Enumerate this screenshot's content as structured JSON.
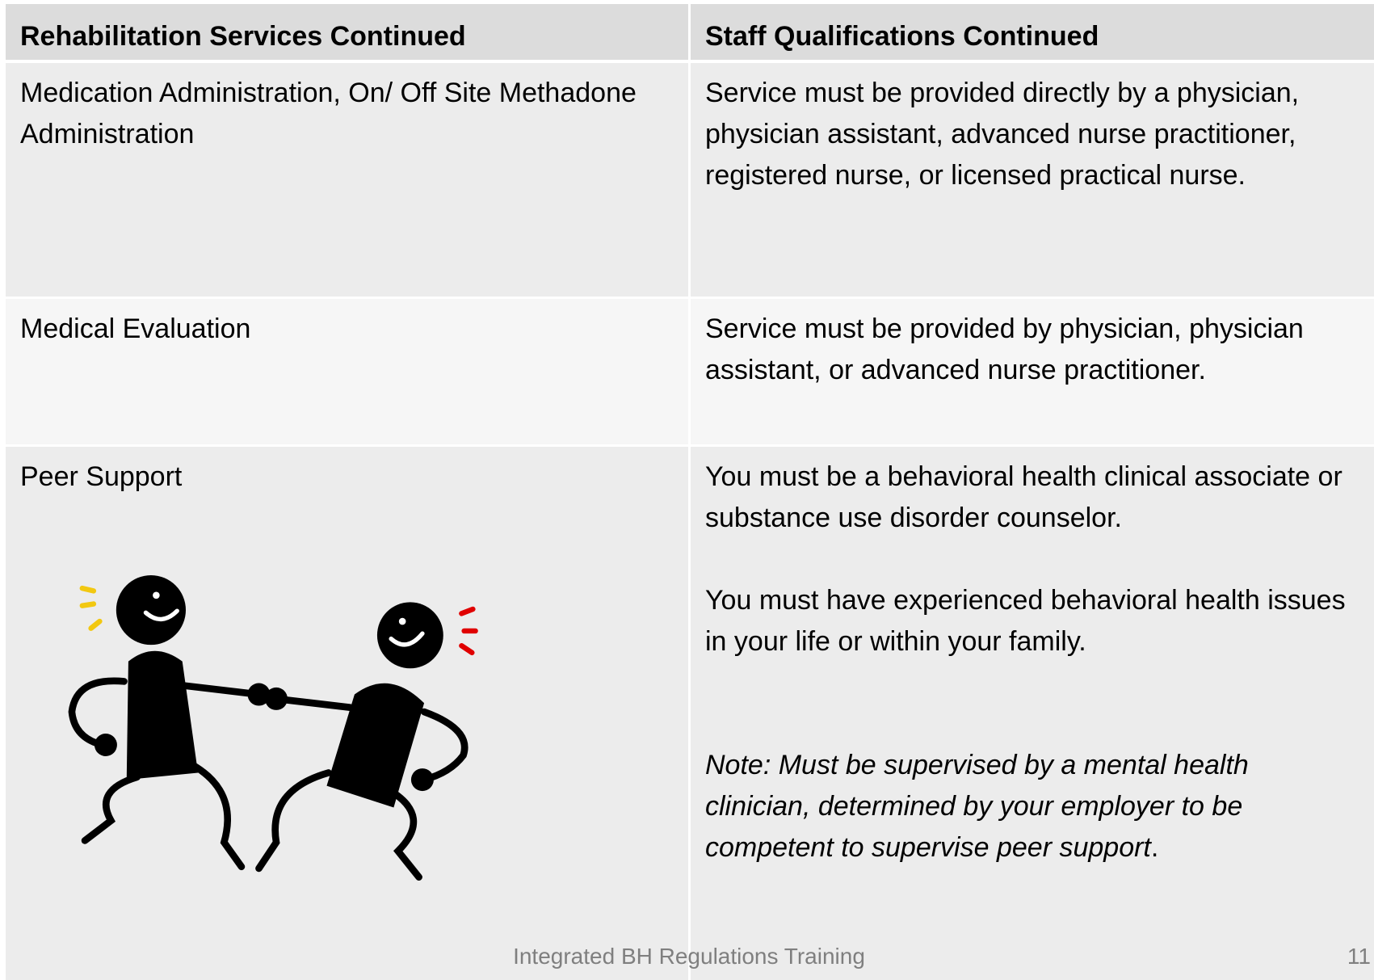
{
  "table": {
    "header": [
      "Rehabilitation Services Continued",
      "Staff Qualifications Continued"
    ],
    "rows": [
      {
        "service": "Medication Administration, On/ Off Site Methadone Administration",
        "qualifications": [
          "Service must be provided directly by a physician, physician assistant, advanced nurse practitioner, registered nurse, or licensed practical nurse."
        ]
      },
      {
        "service": "Medical Evaluation",
        "qualifications": [
          "Service must be provided by physician, physician assistant, or advanced nurse practitioner."
        ]
      },
      {
        "service": "Peer Support",
        "qualifications": [
          "You must be a behavioral health clinical associate or substance use disorder counselor.",
          "You must have experienced behavioral health issues in your life or within your family."
        ],
        "note": {
          "text": "Note: Must be supervised by a mental health clinician, determined by your employer to  be competent to supervise peer support",
          "end": "."
        }
      }
    ]
  },
  "footer": {
    "text": "Integrated BH Regulations Training",
    "page": "11"
  }
}
